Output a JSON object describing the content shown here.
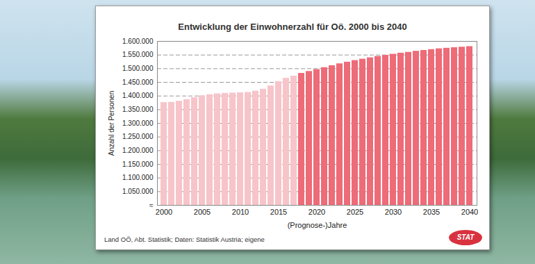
{
  "chart_data": {
    "type": "bar",
    "title": "Entwicklung der Einwohnerzahl für Oö. 2000 bis 2040",
    "x_label": "(Prognose-)Jahre",
    "y_label": "Anzahl der Personen",
    "source": "Land OÖ, Abt. Statistik; Daten: Statistik Austria; eigene",
    "logo_text": "STAT",
    "categories": [
      2000,
      2001,
      2002,
      2003,
      2004,
      2005,
      2006,
      2007,
      2008,
      2009,
      2010,
      2011,
      2012,
      2013,
      2014,
      2015,
      2016,
      2017,
      2018,
      2019,
      2020,
      2021,
      2022,
      2023,
      2024,
      2025,
      2026,
      2027,
      2028,
      2029,
      2030,
      2031,
      2032,
      2033,
      2034,
      2035,
      2036,
      2037,
      2038,
      2039,
      2040
    ],
    "values": [
      1376000,
      1377000,
      1381000,
      1387000,
      1394000,
      1401000,
      1405000,
      1408000,
      1410000,
      1411000,
      1412000,
      1413000,
      1418000,
      1425000,
      1437000,
      1453000,
      1465000,
      1473000,
      1483000,
      1490000,
      1497000,
      1504000,
      1511000,
      1518000,
      1524000,
      1530000,
      1535000,
      1540000,
      1545000,
      1549000,
      1553000,
      1557000,
      1560000,
      1564000,
      1567000,
      1570000,
      1573000,
      1575000,
      1577000,
      1579000,
      1581000
    ],
    "colors": [
      "#f7c4ca",
      "#f7c4ca",
      "#f7c4ca",
      "#f7c4ca",
      "#f7c4ca",
      "#f7c4ca",
      "#f7c4ca",
      "#f7c4ca",
      "#f7c4ca",
      "#f7c4ca",
      "#f7c4ca",
      "#f7c4ca",
      "#f7c4ca",
      "#f7c4ca",
      "#f7c4ca",
      "#f7c4ca",
      "#f7c4ca",
      "#f7c4ca",
      "#ee6b78",
      "#ee6b78",
      "#ee6b78",
      "#ee6b78",
      "#ee6b78",
      "#ee6b78",
      "#ee6b78",
      "#ee6b78",
      "#ee6b78",
      "#ee6b78",
      "#ee6b78",
      "#ee6b78",
      "#ee6b78",
      "#ee6b78",
      "#ee6b78",
      "#ee6b78",
      "#ee6b78",
      "#ee6b78",
      "#ee6b78",
      "#ee6b78",
      "#ee6b78",
      "#ee6b78",
      "#ee6b78"
    ],
    "xticks": [
      2000,
      2005,
      2010,
      2015,
      2020,
      2025,
      2030,
      2035,
      2040
    ],
    "ylim": [
      1000000,
      1600000
    ],
    "yticks": [
      {
        "value": 1000000,
        "label": "≈"
      },
      {
        "value": 1050000,
        "label": "1.050.000"
      },
      {
        "value": 1100000,
        "label": "1.100.000"
      },
      {
        "value": 1150000,
        "label": "1.150.000"
      },
      {
        "value": 1200000,
        "label": "1.200.000"
      },
      {
        "value": 1250000,
        "label": "1.250.000"
      },
      {
        "value": 1300000,
        "label": "1.300.000"
      },
      {
        "value": 1350000,
        "label": "1.350.000"
      },
      {
        "value": 1400000,
        "label": "1.400.000"
      },
      {
        "value": 1450000,
        "label": "1.450.000"
      },
      {
        "value": 1500000,
        "label": "1.500.000"
      },
      {
        "value": 1550000,
        "label": "1.550.000"
      },
      {
        "value": 1600000,
        "label": "1.600.000"
      }
    ],
    "grid": true
  }
}
